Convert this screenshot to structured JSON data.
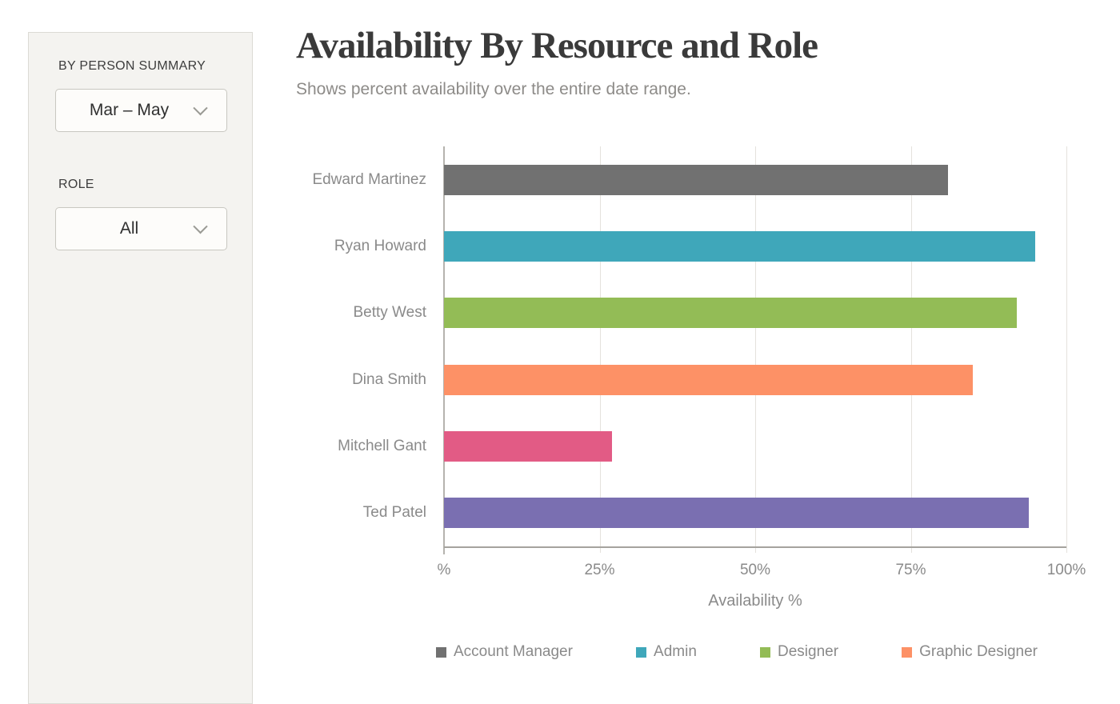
{
  "sidebar": {
    "section_label": "BY PERSON SUMMARY",
    "date_range_value": "Mar – May",
    "role_label": "ROLE",
    "role_value": "All"
  },
  "header": {
    "title": "Availability By Resource and Role",
    "subtitle": "Shows percent availability over the entire date range."
  },
  "chart_data": {
    "type": "bar",
    "orientation": "horizontal",
    "title": "Availability By Resource and Role",
    "xlabel": "Availability %",
    "xlim": [
      0,
      100
    ],
    "x_ticks": [
      "%",
      "25%",
      "50%",
      "75%",
      "100%"
    ],
    "x_tick_positions": [
      0,
      25,
      50,
      75,
      100
    ],
    "grid": true,
    "legend_position": "bottom",
    "categories": [
      "Edward Martinez",
      "Ryan Howard",
      "Betty West",
      "Dina Smith",
      "Mitchell Gant",
      "Ted Patel"
    ],
    "values": [
      81,
      95,
      92,
      85,
      27,
      94
    ],
    "bar_colors": [
      "#717171",
      "#3fa7ba",
      "#93bc56",
      "#fd9166",
      "#e25b85",
      "#7a6fb1"
    ],
    "legend": [
      {
        "label": "Account Manager",
        "color": "#717171"
      },
      {
        "label": "Admin",
        "color": "#3fa7ba"
      },
      {
        "label": "Designer",
        "color": "#93bc56"
      },
      {
        "label": "Graphic Designer",
        "color": "#fd9166"
      }
    ]
  },
  "colors": {
    "sidebar_bg": "#f4f3f0",
    "panel_border": "#dcdbd5",
    "text_dark": "#3a3a3a",
    "text_gray": "#8a8a8a",
    "axis_line": "#a5a39e",
    "gridline": "#e4e2dd"
  }
}
